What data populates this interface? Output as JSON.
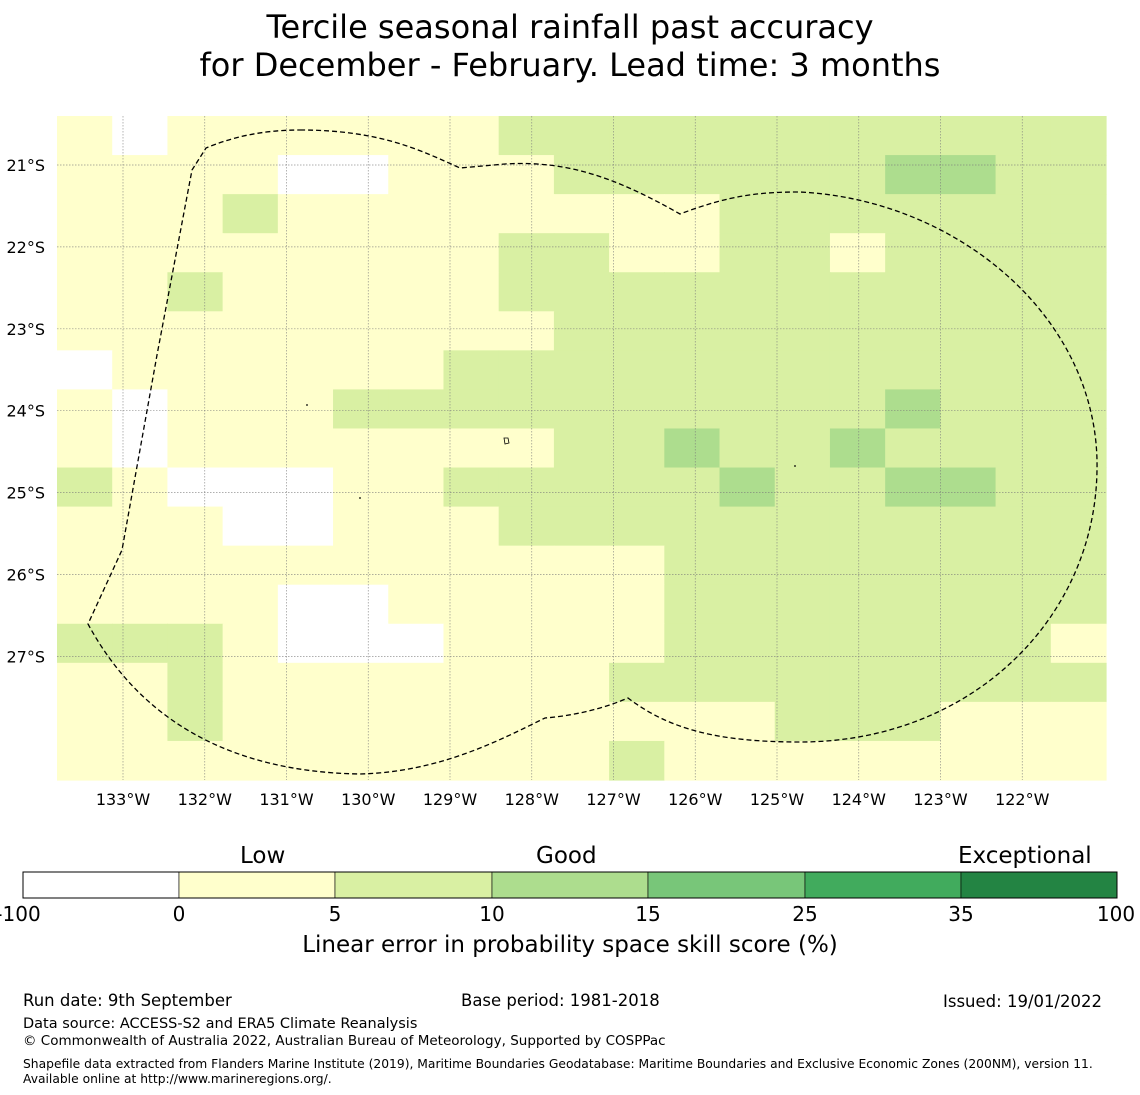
{
  "title": {
    "line1": "Tercile seasonal rainfall past accuracy",
    "line2": "for December - February. Lead time: 3 months"
  },
  "map": {
    "lon_labels": [
      "133°W",
      "132°W",
      "131°W",
      "130°W",
      "129°W",
      "128°W",
      "127°W",
      "126°W",
      "125°W",
      "124°W",
      "123°W",
      "122°W"
    ],
    "lat_labels": [
      "21°S",
      "22°S",
      "23°S",
      "24°S",
      "25°S",
      "26°S",
      "27°S"
    ],
    "lon_values": [
      -133,
      -132,
      -131,
      -130,
      -129,
      -128,
      -127,
      -126,
      -125,
      -124,
      -123,
      -122
    ],
    "lat_values": [
      -21,
      -22,
      -23,
      -24,
      -25,
      -26,
      -27
    ],
    "eez_boundary": "dashed",
    "grid_codes": [
      "1011111122222222222",
      "1111001112222223322",
      "1112111111112222222",
      "1111111122112212222",
      "1121111122222222222",
      "1111111112222222222",
      "0111111222222222222",
      "1011122222222223222",
      "1011111112232232222",
      "2100011222223223322",
      "1110011122222222222",
      "1111111111122222222",
      "1111001111122222222",
      "2221000111122222221",
      "1121111111222222222",
      "1121111111111222111",
      "1111111111211111111"
    ]
  },
  "colorbar": {
    "categories": [
      "Low",
      "Good",
      "Exceptional"
    ],
    "ticks": [
      "-100",
      "0",
      "5",
      "10",
      "15",
      "25",
      "35",
      "100"
    ],
    "colors": [
      "#ffffff",
      "#ffffcc",
      "#d9f0a3",
      "#addd8e",
      "#78c679",
      "#41ab5d",
      "#238443"
    ],
    "label": "Linear error in probability space skill score (%)"
  },
  "footer": {
    "run_date": "Run date: 9th September",
    "base_period": "Base period: 1981-2018",
    "issued": "Issued: 19/01/2022",
    "data_source": "Data source: ACCESS-S2 and ERA5 Climate Reanalysis",
    "copyright": "© Commonwealth of Australia 2022, Australian Bureau of Meteorology, Supported by COSPPac",
    "shapefile": "Shapefile data extracted from Flanders Marine Institute (2019), Maritime Boundaries Geodatabase: Maritime Boundaries and Exclusive Economic Zones (200NM), version 11. Available online at http://www.marineregions.org/."
  }
}
